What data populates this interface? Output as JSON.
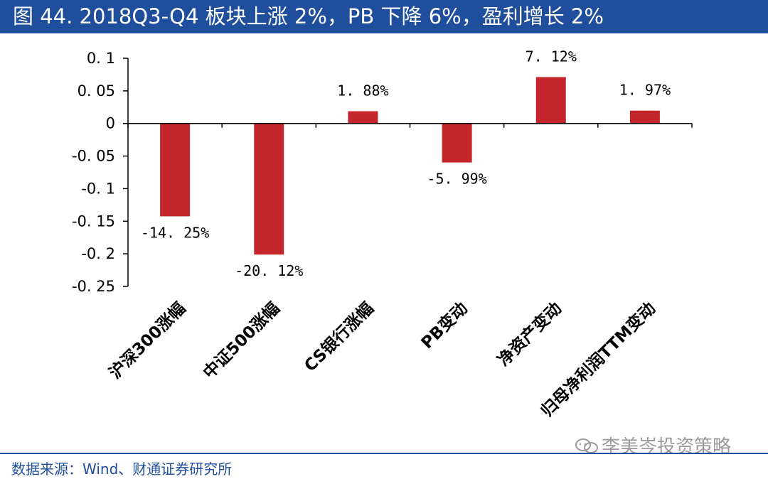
{
  "header": {
    "title": "图 44. 2018Q3-Q4 板块上涨 2%，PB 下降 6%，盈利增长 2%"
  },
  "chart_data": {
    "type": "bar",
    "title": "",
    "xlabel": "",
    "ylabel": "",
    "ylim": [
      -0.25,
      0.1
    ],
    "yticks": [
      0.1,
      0.05,
      0,
      -0.05,
      -0.1,
      -0.15,
      -0.2,
      -0.25
    ],
    "ytick_labels": [
      "0. 1",
      "0. 05",
      "0",
      "-0. 05",
      "-0. 1",
      "-0. 15",
      "-0. 2",
      "-0. 25"
    ],
    "categories": [
      "沪深300涨幅",
      "中证500涨幅",
      "CS银行涨幅",
      "PB变动",
      "净资产变动",
      "归母净利润TTM变动"
    ],
    "values": [
      -0.1425,
      -0.2012,
      0.0188,
      -0.0599,
      0.0712,
      0.0197
    ],
    "data_labels": [
      "-14. 25%",
      "-20. 12%",
      "1. 88%",
      "-5. 99%",
      "7. 12%",
      "1. 97%"
    ],
    "bar_color": "#c4262b",
    "grid": false,
    "legend": "none"
  },
  "watermark": {
    "text": "李美岑投资策略",
    "icon": "wechat-icon"
  },
  "footer": {
    "source": "数据来源：Wind、财通证券研究所"
  }
}
